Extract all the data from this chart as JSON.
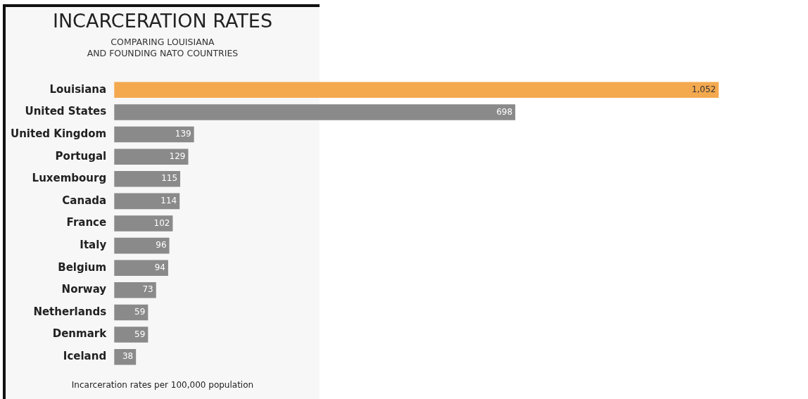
{
  "chart_data": {
    "type": "bar",
    "orientation": "horizontal",
    "title": "INCARCERATION RATES",
    "subtitle": "COMPARING LOUISIANA\nAND FOUNDING NATO COUNTRIES",
    "categories": [
      "Louisiana",
      "United States",
      "United Kingdom",
      "Portugal",
      "Luxembourg",
      "Canada",
      "France",
      "Italy",
      "Belgium",
      "Norway",
      "Netherlands",
      "Denmark",
      "Iceland"
    ],
    "values": [
      1052,
      698,
      139,
      129,
      115,
      114,
      102,
      96,
      94,
      73,
      59,
      59,
      38
    ],
    "value_labels": [
      "1,052",
      "698",
      "139",
      "129",
      "115",
      "114",
      "102",
      "96",
      "94",
      "73",
      "59",
      "59",
      "38"
    ],
    "colors": [
      "#f4a94f",
      "#8a8a8a",
      "#8a8a8a",
      "#8a8a8a",
      "#8a8a8a",
      "#8a8a8a",
      "#8a8a8a",
      "#8a8a8a",
      "#8a8a8a",
      "#8a8a8a",
      "#8a8a8a",
      "#8a8a8a",
      "#8a8a8a"
    ],
    "tick_labels": "y",
    "annotations": [
      "Incarceration rates per 100,000 population"
    ]
  }
}
